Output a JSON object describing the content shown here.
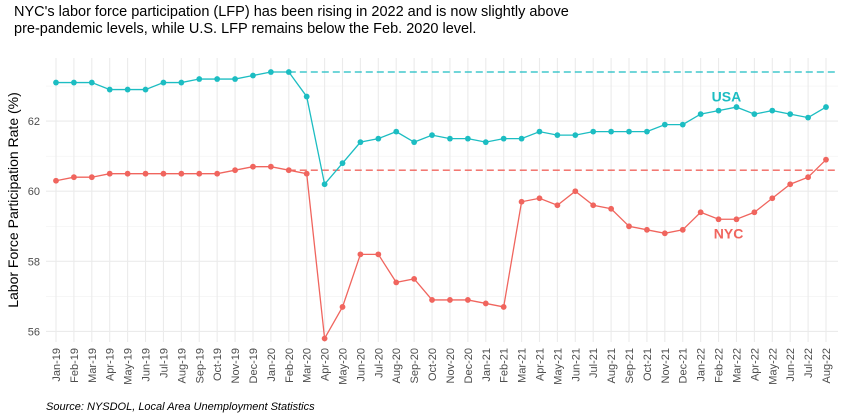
{
  "chart_data": {
    "type": "line",
    "title": "NYC's labor force participation (LFP) has been rising in 2022 and is now slightly above pre-pandemic levels, while U.S. LFP remains below the Feb. 2020 level.",
    "caption": "Source: NYSDOL, Local Area Unemployment Statistics",
    "ylabel": "Labor Force Participation Rate (%)",
    "xlabel": "",
    "ylim": [
      55.7,
      63.8
    ],
    "yticks": [
      56,
      58,
      60,
      62
    ],
    "grid": true,
    "categories": [
      "Jan-19",
      "Feb-19",
      "Mar-19",
      "Apr-19",
      "May-19",
      "Jun-19",
      "Jul-19",
      "Aug-19",
      "Sep-19",
      "Oct-19",
      "Nov-19",
      "Dec-19",
      "Jan-20",
      "Feb-20",
      "Mar-20",
      "Apr-20",
      "May-20",
      "Jun-20",
      "Jul-20",
      "Aug-20",
      "Sep-20",
      "Oct-20",
      "Nov-20",
      "Dec-20",
      "Jan-21",
      "Feb-21",
      "Mar-21",
      "Apr-21",
      "May-21",
      "Jun-21",
      "Jul-21",
      "Aug-21",
      "Sep-21",
      "Oct-21",
      "Nov-21",
      "Dec-21",
      "Jan-22",
      "Feb-22",
      "Mar-22",
      "Apr-22",
      "May-22",
      "Jun-22",
      "Jul-22",
      "Aug-22"
    ],
    "series": [
      {
        "name": "USA",
        "color": "#1cbdc2",
        "values": [
          63.1,
          63.1,
          63.1,
          62.9,
          62.9,
          62.9,
          63.1,
          63.1,
          63.2,
          63.2,
          63.2,
          63.3,
          63.4,
          63.4,
          62.7,
          60.2,
          60.8,
          61.4,
          61.5,
          61.7,
          61.4,
          61.6,
          61.5,
          61.5,
          61.4,
          61.5,
          61.5,
          61.7,
          61.6,
          61.6,
          61.7,
          61.7,
          61.7,
          61.7,
          61.9,
          61.9,
          62.2,
          62.3,
          62.4,
          62.2,
          62.3,
          62.2,
          62.1,
          62.4
        ],
        "reference_level": 63.4
      },
      {
        "name": "NYC",
        "color": "#f0655e",
        "values": [
          60.3,
          60.4,
          60.4,
          60.5,
          60.5,
          60.5,
          60.5,
          60.5,
          60.5,
          60.5,
          60.6,
          60.7,
          60.7,
          60.6,
          60.5,
          55.8,
          56.7,
          58.2,
          58.2,
          57.4,
          57.5,
          56.9,
          56.9,
          56.9,
          56.8,
          56.7,
          59.7,
          59.8,
          59.6,
          60.0,
          59.6,
          59.5,
          59.0,
          58.9,
          58.8,
          58.9,
          59.4,
          59.2,
          59.2,
          59.4,
          59.8,
          60.2,
          60.4,
          60.9
        ],
        "reference_level": 60.6
      }
    ],
    "annotations": [
      {
        "text": "USA",
        "series": "USA"
      },
      {
        "text": "NYC",
        "series": "NYC"
      }
    ]
  }
}
